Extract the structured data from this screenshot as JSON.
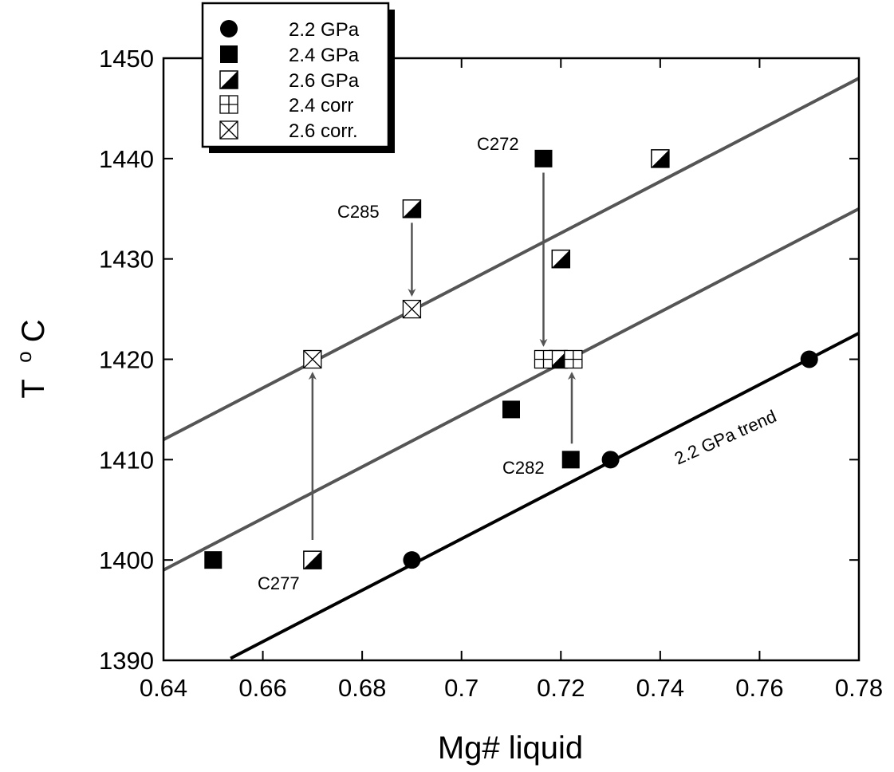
{
  "chart_data": {
    "type": "scatter",
    "title": "",
    "xlabel": "Mg# liquid",
    "ylabel_main": "T",
    "ylabel_sup": "o",
    "ylabel_unit": "C",
    "xlim": [
      0.64,
      0.78
    ],
    "ylim": [
      1390,
      1450
    ],
    "x_ticks": [
      0.64,
      0.66,
      0.68,
      0.7,
      0.72,
      0.74,
      0.76,
      0.78
    ],
    "x_tick_labels": [
      "0.64",
      "0.66",
      "0.68",
      "0.7",
      "0.72",
      "0.74",
      "0.76",
      "0.78"
    ],
    "y_ticks": [
      1390,
      1400,
      1410,
      1420,
      1430,
      1440,
      1450
    ],
    "y_tick_labels": [
      "1390",
      "1400",
      "1410",
      "1420",
      "1430",
      "1440",
      "1450"
    ],
    "grid": false,
    "legend_position": "top-left",
    "legend": [
      {
        "marker": "circle",
        "label": "2.2 GPa"
      },
      {
        "marker": "square",
        "label": "2.4 GPa"
      },
      {
        "marker": "half",
        "label": "2.6 GPa"
      },
      {
        "marker": "plus-box",
        "label": "2.4 corr"
      },
      {
        "marker": "x-box",
        "label": "2.6 corr."
      }
    ],
    "series": [
      {
        "marker": "circle",
        "points": [
          [
            0.69,
            1400
          ],
          [
            0.73,
            1410
          ],
          [
            0.77,
            1420
          ]
        ]
      },
      {
        "marker": "square",
        "points": [
          [
            0.65,
            1400
          ],
          [
            0.71,
            1415
          ],
          [
            0.7165,
            1440
          ],
          [
            0.722,
            1410
          ]
        ]
      },
      {
        "marker": "half",
        "points": [
          [
            0.67,
            1400
          ],
          [
            0.69,
            1435
          ],
          [
            0.72,
            1430
          ],
          [
            0.74,
            1440
          ],
          [
            0.7195,
            1420
          ]
        ]
      },
      {
        "marker": "plus-box",
        "points": [
          [
            0.7165,
            1420
          ],
          [
            0.7225,
            1420
          ]
        ]
      },
      {
        "marker": "x-box",
        "points": [
          [
            0.67,
            1420
          ],
          [
            0.69,
            1425
          ]
        ]
      }
    ],
    "trend_lines": [
      {
        "from": [
          0.64,
          1412
        ],
        "to": [
          0.78,
          1448
        ],
        "color": "#555555"
      },
      {
        "from": [
          0.64,
          1399
        ],
        "to": [
          0.78,
          1435
        ],
        "color": "#555555"
      },
      {
        "from": [
          0.6535,
          1390.2
        ],
        "to": [
          0.78,
          1422.6
        ],
        "color": "#000000",
        "label": "2.2 GPa trend"
      }
    ],
    "arrows": [
      {
        "from": [
          0.69,
          1433.6
        ],
        "to": [
          0.69,
          1426.4
        ]
      },
      {
        "from": [
          0.7165,
          1438.6
        ],
        "to": [
          0.7165,
          1421.4
        ]
      },
      {
        "from": [
          0.67,
          1402
        ],
        "to": [
          0.67,
          1418.6
        ]
      },
      {
        "from": [
          0.7222,
          1411.6
        ],
        "to": [
          0.7222,
          1418.6
        ]
      }
    ],
    "annotations": [
      {
        "text": "C272"
      },
      {
        "text": "C285"
      },
      {
        "text": "C282"
      },
      {
        "text": "C277"
      }
    ]
  }
}
